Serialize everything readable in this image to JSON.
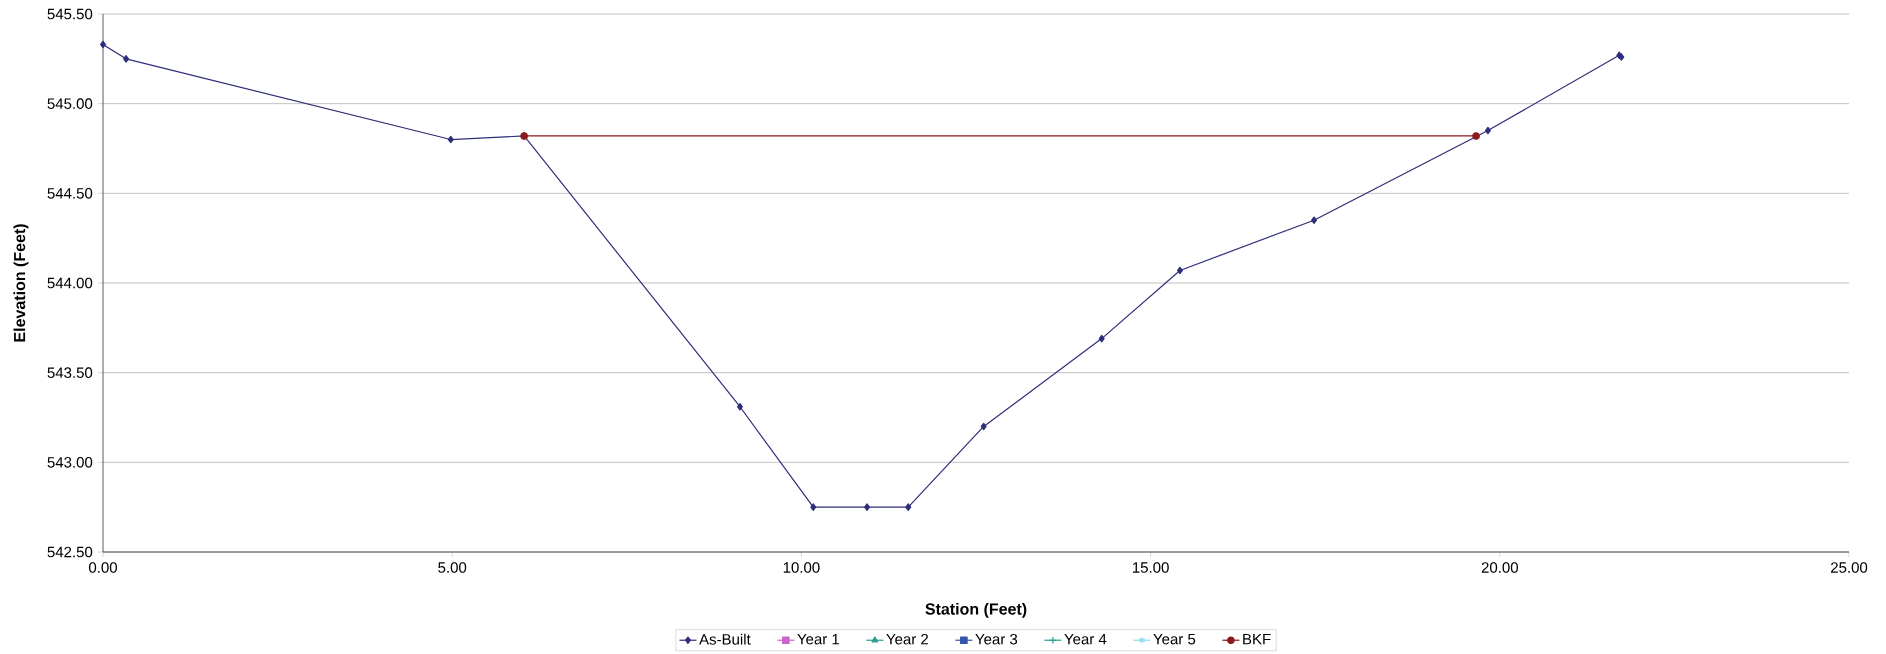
{
  "chart_data": {
    "type": "line",
    "xlabel": "Station (Feet)",
    "ylabel": "Elevation (Feet)",
    "xlim": [
      0,
      25
    ],
    "ylim": [
      542.5,
      545.5
    ],
    "xticks": [
      {
        "value": 0,
        "label": "0.00"
      },
      {
        "value": 5,
        "label": "5.00"
      },
      {
        "value": 10,
        "label": "10.00"
      },
      {
        "value": 15,
        "label": "15.00"
      },
      {
        "value": 20,
        "label": "20.00"
      },
      {
        "value": 25,
        "label": "25.00"
      }
    ],
    "yticks": [
      {
        "value": 542.5,
        "label": "542.50"
      },
      {
        "value": 543,
        "label": "543.00"
      },
      {
        "value": 543.5,
        "label": "543.50"
      },
      {
        "value": 544,
        "label": "544.00"
      },
      {
        "value": 544.5,
        "label": "544.50"
      },
      {
        "value": 545,
        "label": "545.00"
      },
      {
        "value": 545.5,
        "label": "545.50"
      }
    ],
    "grid": "y",
    "legend": "bottom",
    "series": [
      {
        "name": "As-Built",
        "color": "#2e2e7a",
        "marker": "diamond",
        "x": [
          0,
          0.33,
          4.98,
          6.03,
          9.12,
          10.17,
          10.94,
          11.53,
          12.61,
          14.3,
          15.42,
          17.34,
          19.83,
          21.71,
          21.74
        ],
        "values": [
          545.33,
          545.25,
          544.8,
          544.82,
          543.31,
          542.75,
          542.75,
          542.75,
          543.2,
          543.69,
          544.07,
          544.35,
          544.85,
          545.27,
          545.26
        ]
      },
      {
        "name": "Year 1",
        "color": "#cc66cc",
        "marker": "square"
      },
      {
        "name": "Year 2",
        "color": "#2a9d8f",
        "marker": "triangle"
      },
      {
        "name": "Year 3",
        "color": "#3355aa",
        "marker": "square"
      },
      {
        "name": "Year 4",
        "color": "#2a9d8f",
        "marker": "cross"
      },
      {
        "name": "Year 5",
        "color": "#88ddee",
        "marker": "star"
      },
      {
        "name": "BKF",
        "color": "#8b1a1a",
        "marker": "circle",
        "x": [
          6.03,
          19.66
        ],
        "values": [
          544.82,
          544.82
        ]
      }
    ]
  }
}
